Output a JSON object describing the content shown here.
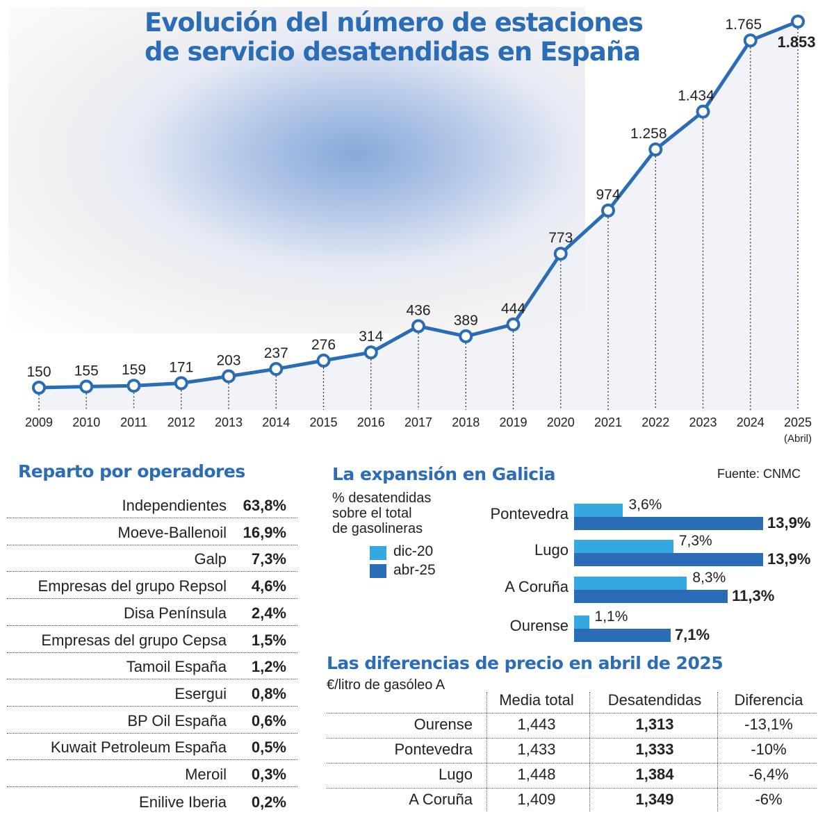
{
  "title": "Evolución del número de estaciones de servicio desatendidas en España",
  "title_lines": [
    "Evolución del número de estaciones",
    "de servicio desatendidas en España"
  ],
  "source": "Fuente: CNMC",
  "colors": {
    "line": "#2a6cb5",
    "title": "#2a6cb5",
    "light_bar": "#35a8e0",
    "dark_bar": "#2a6cb5",
    "area": "#eef0f8"
  },
  "chart_data": [
    {
      "type": "line",
      "title": "Evolución del número de estaciones de servicio desatendidas en España",
      "x": [
        "2009",
        "2010",
        "2011",
        "2012",
        "2013",
        "2014",
        "2015",
        "2016",
        "2017",
        "2018",
        "2019",
        "2020",
        "2021",
        "2022",
        "2023",
        "2024",
        "2025"
      ],
      "x_sublabels": {
        "2025": "(Abril)"
      },
      "values": [
        150,
        155,
        159,
        171,
        203,
        237,
        276,
        314,
        436,
        389,
        444,
        773,
        974,
        1258,
        1434,
        1765,
        1853
      ],
      "data_labels": [
        "150",
        "155",
        "159",
        "171",
        "203",
        "237",
        "276",
        "314",
        "436",
        "389",
        "444",
        "773",
        "974",
        "1.258",
        "1.434",
        "1.765",
        "1.853"
      ],
      "ylim": [
        150,
        1853
      ],
      "grid": false
    },
    {
      "type": "bar",
      "title": "La expansión en Galicia",
      "subtitle": "% desatendidas sobre el total de gasolineras",
      "subtitle_lines": [
        "% desatendidas",
        "sobre el total",
        "de gasolineras"
      ],
      "categories": [
        "Pontevedra",
        "Lugo",
        "A Coruña",
        "Ourense"
      ],
      "series": [
        {
          "name": "dic-20",
          "values": [
            3.6,
            7.3,
            8.3,
            1.1
          ],
          "labels": [
            "3,6%",
            "7,3%",
            "8,3%",
            "1,1%"
          ]
        },
        {
          "name": "abr-25",
          "values": [
            13.9,
            13.9,
            11.3,
            7.1
          ],
          "labels": [
            "13,9%",
            "13,9%",
            "11,3%",
            "7,1%"
          ]
        }
      ],
      "legend": "left"
    },
    {
      "type": "table",
      "title": "Reparto por operadores",
      "rows": [
        [
          "Independientes",
          "63,8%"
        ],
        [
          "Moeve-Ballenoil",
          "16,9%"
        ],
        [
          "Galp",
          "7,3%"
        ],
        [
          "Empresas del grupo Repsol",
          "4,6%"
        ],
        [
          "Disa Península",
          "2,4%"
        ],
        [
          "Empresas del grupo Cepsa",
          "1,5%"
        ],
        [
          "Tamoil España",
          "1,2%"
        ],
        [
          "Esergui",
          "0,8%"
        ],
        [
          "BP Oil España",
          "0,6%"
        ],
        [
          "Kuwait Petroleum España",
          "0,5%"
        ],
        [
          "Meroil",
          "0,3%"
        ],
        [
          "Enilive Iberia",
          "0,2%"
        ]
      ]
    },
    {
      "type": "table",
      "title": "Las diferencias de precio en abril de 2025",
      "subtitle": "€/litro de gasóleo A",
      "columns": [
        "",
        "Media total",
        "Desatendidas",
        "Diferencia"
      ],
      "rows": [
        [
          "Ourense",
          "1,443",
          "1,313",
          "-13,1%"
        ],
        [
          "Pontevedra",
          "1,433",
          "1,333",
          "-10%"
        ],
        [
          "Lugo",
          "1,448",
          "1,384",
          "-6,4%"
        ],
        [
          "A Coruña",
          "1,409",
          "1,349",
          "-6%"
        ]
      ]
    }
  ]
}
